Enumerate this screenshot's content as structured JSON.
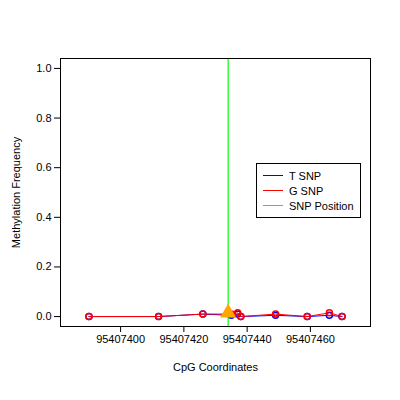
{
  "chart_data": {
    "type": "line",
    "x_label": "CpG Coordinates",
    "y_label": "Methylation Frequency",
    "x": [
      95407390,
      95407412,
      95407426,
      95407435,
      95407437,
      95407438,
      95407449,
      95407459,
      95407466,
      95407470
    ],
    "series": [
      {
        "name": "T SNP",
        "color": "#0000ff",
        "marker": "circle",
        "values": [
          0,
          0,
          0.01,
          0.005,
          0.01,
          0,
          0.005,
          0,
          0.005,
          0
        ]
      },
      {
        "name": "G SNP",
        "color": "#ff0000",
        "marker": "circle",
        "values": [
          0,
          0,
          0.01,
          0.01,
          0.015,
          0,
          0.01,
          0,
          0.015,
          0
        ]
      },
      {
        "name": "SNP Position",
        "color": "#00ff00",
        "type": "vline",
        "x": 95407434
      }
    ],
    "snp_marker": {
      "x": 95407434,
      "y": 0.015,
      "color": "#ffa500",
      "marker": "triangle"
    },
    "xlim": [
      95407381,
      95407479
    ],
    "ylim": [
      -0.04,
      1.04
    ],
    "xticks": [
      95407400,
      95407420,
      95407440,
      95407460
    ],
    "yticks": [
      {
        "value": 0,
        "label": "0.0"
      },
      {
        "value": 0.2,
        "label": "0.2"
      },
      {
        "value": 0.4,
        "label": "0.4"
      },
      {
        "value": 0.6,
        "label": "0.6"
      },
      {
        "value": 0.8,
        "label": "0.8"
      },
      {
        "value": 1,
        "label": "1.0"
      }
    ],
    "legend": "right",
    "grid": false
  }
}
